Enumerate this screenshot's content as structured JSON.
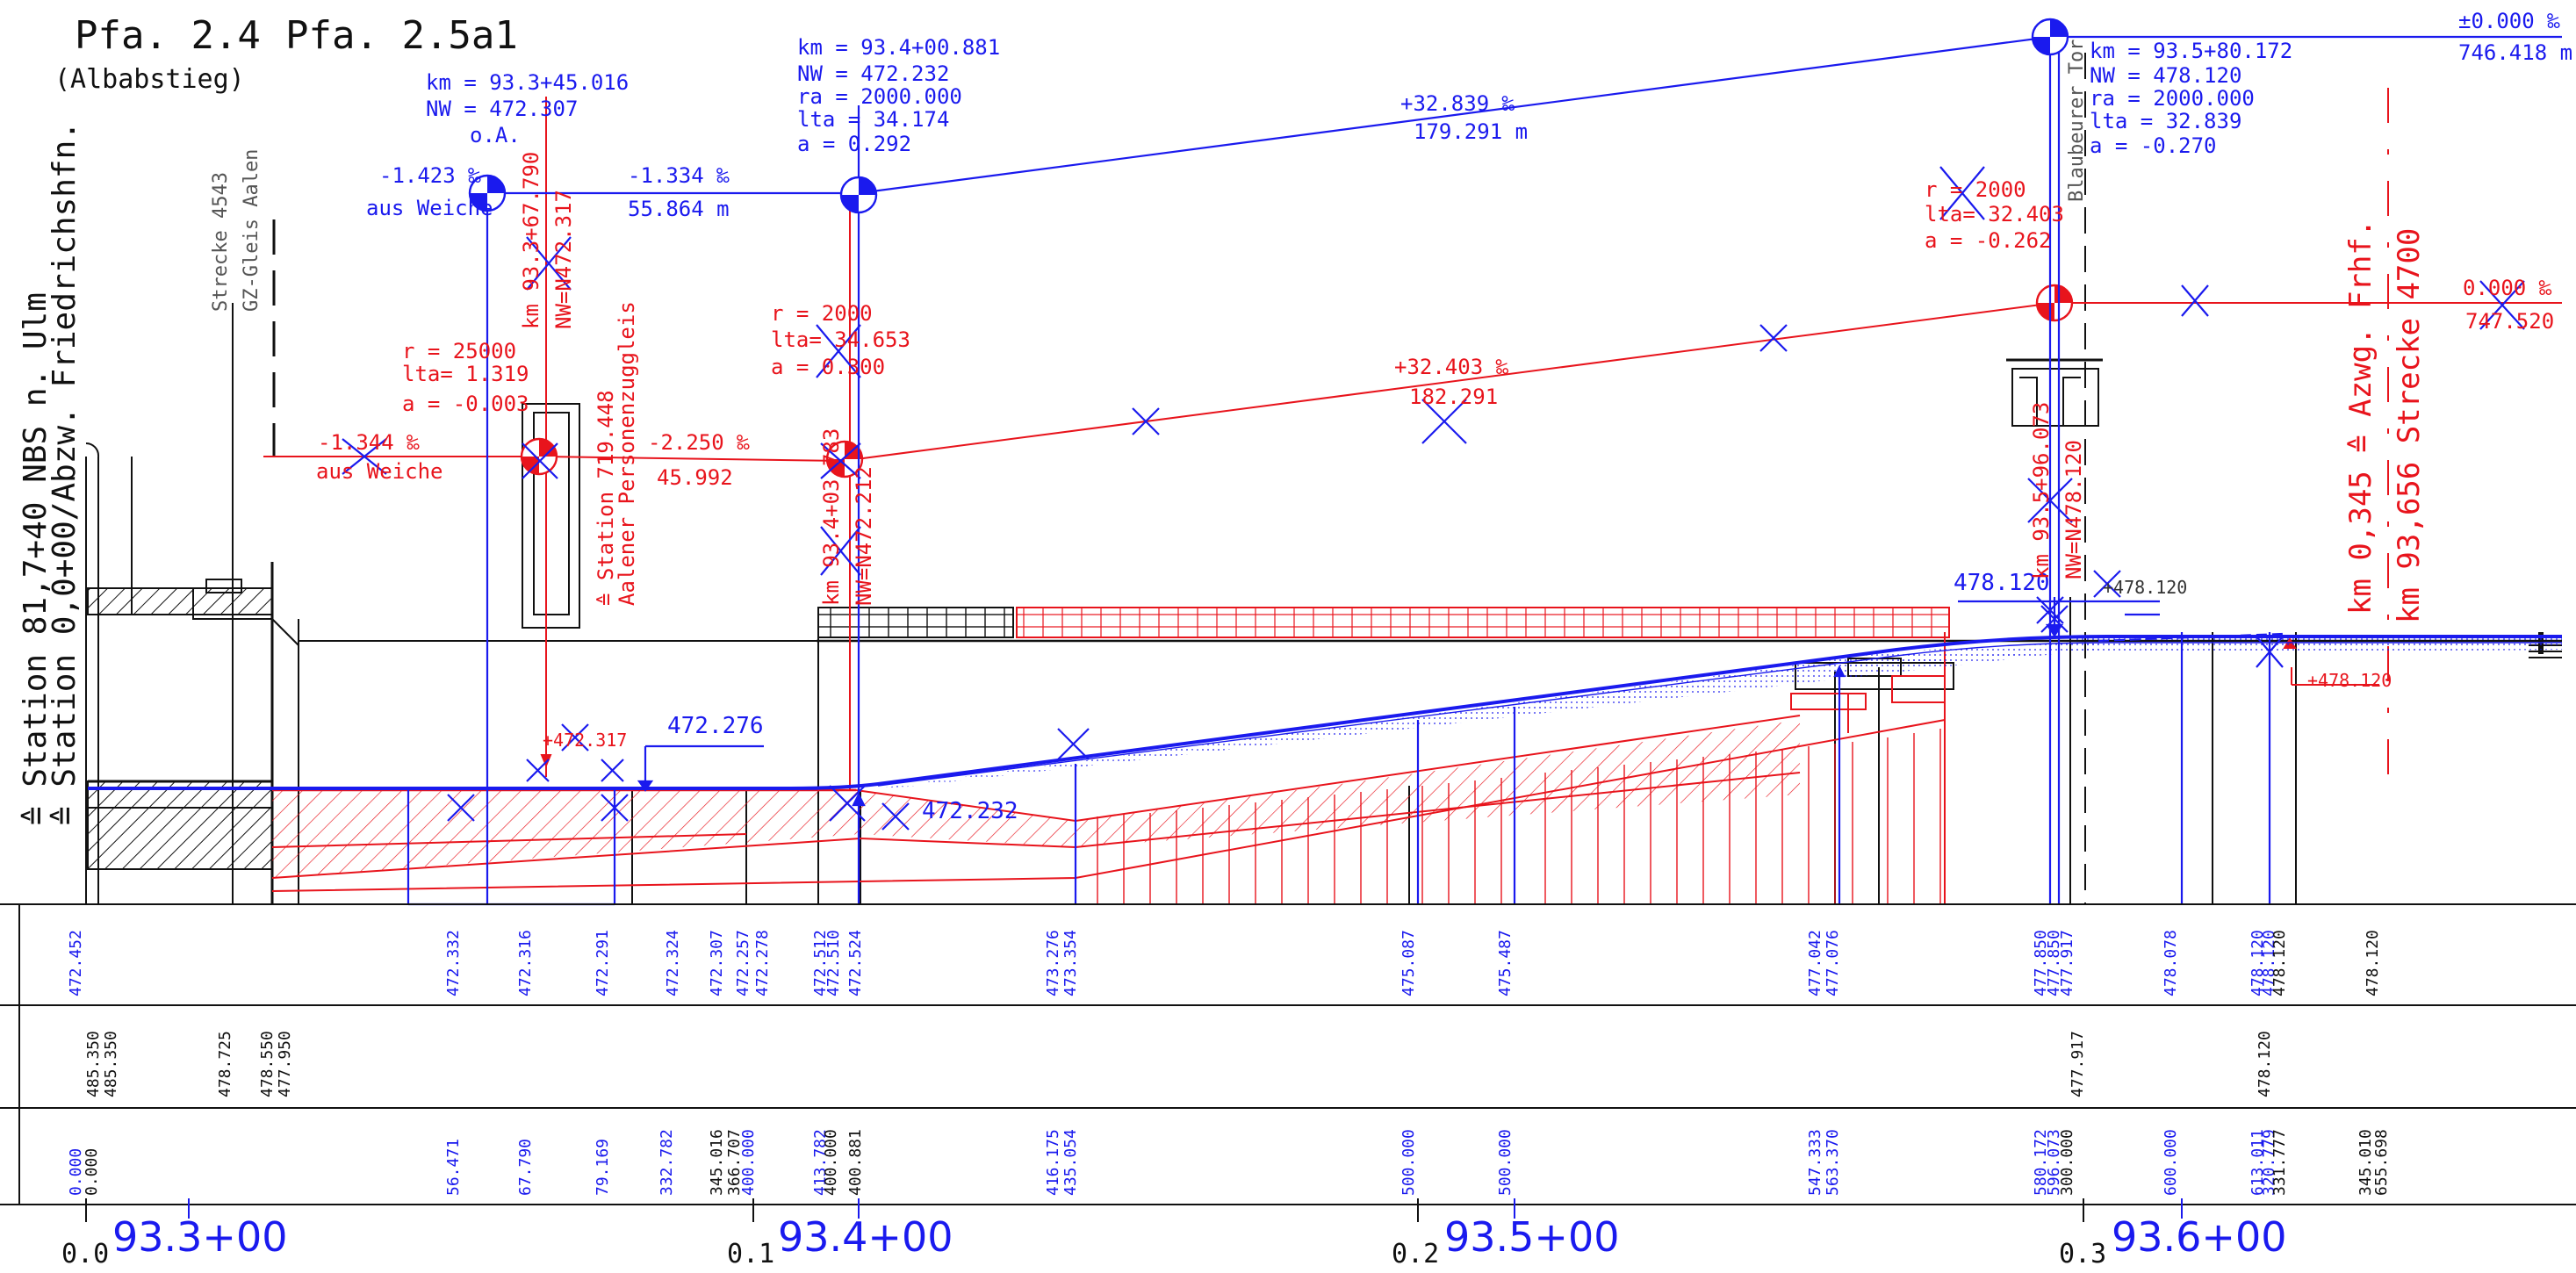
{
  "header": {
    "pfa_left": "Pfa. 2.4",
    "pfa_left_sub": "(Albabstieg)",
    "pfa_right": "Pfa. 2.5a1"
  },
  "side": {
    "station_line1": "≙ Station 81,7+40 NBS n. Ulm",
    "station_line2": "≙ Station 0,0+00/Abzw. Friedrichshfn.",
    "strecke": "Strecke 4543",
    "gz_gleis": "GZ-Gleis Aalen",
    "blaubeurer": "Blaubeurer Tor"
  },
  "blue_annotations": {
    "pvi1": {
      "km": "km = 93.3+45.016",
      "nw": "NW = 472.307",
      "oa": "o.A."
    },
    "pvi2": {
      "km": "km = 93.4+00.881",
      "nw": "NW = 472.232",
      "ra": "ra  = 2000.000",
      "lta": "lta = 34.174",
      "a": "a   = 0.292"
    },
    "pvi3": {
      "km": "km = 93.5+80.172",
      "nw": "NW = 478.120",
      "ra": "ra  = 2000.000",
      "lta": "lta = 32.839",
      "a": "a   = -0.270"
    },
    "grade_left": "-1.423 ‰",
    "aus_weiche": "aus Weiche",
    "grade1": "-1.334 ‰",
    "len1": "55.864 m",
    "grade2": "+32.839 ‰",
    "len2": "179.291 m",
    "grade_right": "±0.000 ‰",
    "len_right": "746.418 m",
    "elev_472276": "472.276",
    "elev_472232": "472.232",
    "elev_478120": "478.120"
  },
  "red_annotations": {
    "curve1": {
      "r": "r =   25000",
      "lta": "lta=  1.319",
      "a": "a  =  -0.003"
    },
    "curve2": {
      "r": "r =   2000",
      "lta": "lta= 34.653",
      "a": "a  =  0.300"
    },
    "curve3": {
      "r": "r =   2000",
      "lta": "lta= 32.403",
      "a": "a  =  -0.262"
    },
    "grade_left": "-1.344 ‰",
    "aus_weiche": "aus Weiche",
    "grade1": "-2.250 ‰",
    "len1": "45.992",
    "grade2": "+32.403 ‰",
    "len2": "182.291",
    "grade_right": "0.000 ‰",
    "len_right": "747.520",
    "km_v1": "km 93.3+67.790",
    "nw_v1": "NW=N472.317",
    "station_v1": "≙ Station 719.448",
    "station_v1b": "Aalener Personenzuggleis",
    "km_v2": "km 93.4+03.783",
    "nw_v2": "NW=N472.212",
    "km_v3": "km 93.5+96.073",
    "nw_v3": "NW=N478.120",
    "km_azw": "km 0,345 ≙ Azwg. Frhf.",
    "km_strecke": "km 93,656 Strecke 4700",
    "elev_plus_472317": "+472.317",
    "elev_plus_478120": "+478.120",
    "elev_478120b": "+478.120"
  },
  "table": {
    "row1": [
      "472.452",
      "472.332",
      "472.316",
      "472.291",
      "472.324",
      "472.307",
      "472.257",
      "472.278",
      "472.512",
      "472.510",
      "472.524",
      "473.276",
      "473.354",
      "475.087",
      "475.487",
      "477.042",
      "477.076",
      "477.850",
      "477.850",
      "477.917",
      "478.078",
      "478.120",
      "478.120",
      "478.120",
      "478.120"
    ],
    "row2": [
      "485.350",
      "485.350",
      "478.725",
      "478.550",
      "477.950",
      "477.917",
      "478.120"
    ],
    "row3": [
      "0.000",
      "0.000",
      "56.471",
      "67.790",
      "79.169",
      "332.782",
      "345.016",
      "366.707",
      "400.000",
      "413.782",
      "400.000",
      "400.881",
      "416.175",
      "435.054",
      "500.000",
      "500.000",
      "547.333",
      "563.370",
      "580.172",
      "596.073",
      "300.000",
      "600.000",
      "613.011",
      "320.779",
      "331.777",
      "345.010",
      "655.698"
    ]
  },
  "axis": {
    "major": [
      {
        "label": "93.3+00",
        "km": "0.0"
      },
      {
        "label": "93.4+00",
        "km": "0.1"
      },
      {
        "label": "93.5+00",
        "km": "0.2"
      },
      {
        "label": "93.6+00",
        "km": "0.3"
      }
    ]
  },
  "colors": {
    "design": "#1a1aee",
    "existing": "#e8141c",
    "structure": "#111111"
  }
}
